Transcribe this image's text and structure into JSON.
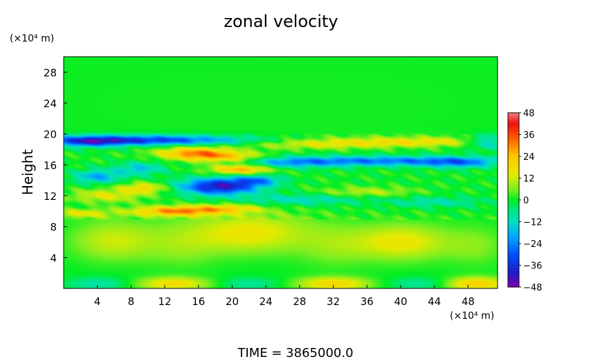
{
  "chart_data": {
    "type": "heatmap",
    "title": "zonal velocity",
    "ylabel": "Height",
    "y_unit": "(×10⁴ m)",
    "x_unit": "(×10⁴ m)",
    "xlim": [
      0,
      51.5
    ],
    "ylim": [
      0,
      30
    ],
    "x_ticks": [
      4,
      8,
      12,
      16,
      20,
      24,
      28,
      32,
      36,
      40,
      44,
      48
    ],
    "y_ticks": [
      4,
      8,
      12,
      16,
      20,
      24,
      28
    ],
    "colorbar": {
      "min": -48,
      "max": 48,
      "ticks": [
        48,
        36,
        24,
        12,
        0,
        -12,
        -24,
        -36,
        -48
      ],
      "stops": [
        {
          "v": -48,
          "color": "#7f00b0"
        },
        {
          "v": -40,
          "color": "#1c1cc8"
        },
        {
          "v": -30,
          "color": "#0050ff"
        },
        {
          "v": -20,
          "color": "#00aaff"
        },
        {
          "v": -12,
          "color": "#00e0c0"
        },
        {
          "v": -5,
          "color": "#00e878"
        },
        {
          "v": 0,
          "color": "#00ee22"
        },
        {
          "v": 6,
          "color": "#80ee20"
        },
        {
          "v": 14,
          "color": "#e6ea00"
        },
        {
          "v": 24,
          "color": "#ffc800"
        },
        {
          "v": 34,
          "color": "#ff5a00"
        },
        {
          "v": 42,
          "color": "#ee1010"
        },
        {
          "v": 48,
          "color": "#f07c7c"
        }
      ]
    },
    "features": [
      {
        "x": 10,
        "y": 19.2,
        "sx": 8,
        "sy": 0.45,
        "v": -34
      },
      {
        "x": 3,
        "y": 19.0,
        "sx": 3,
        "sy": 0.5,
        "v": -24
      },
      {
        "x": 50.5,
        "y": 19.0,
        "sx": 2,
        "sy": 0.6,
        "v": -22
      },
      {
        "x": 42,
        "y": 19.0,
        "sx": 9,
        "sy": 0.45,
        "v": 16
      },
      {
        "x": 30,
        "y": 18.6,
        "sx": 6,
        "sy": 0.4,
        "v": 10
      },
      {
        "x": 38,
        "y": 16.5,
        "sx": 8,
        "sy": 0.45,
        "v": -26
      },
      {
        "x": 27,
        "y": 16.3,
        "sx": 4,
        "sy": 0.5,
        "v": -16
      },
      {
        "x": 47,
        "y": 16.3,
        "sx": 3,
        "sy": 0.5,
        "v": -18
      },
      {
        "x": 15.5,
        "y": 17.5,
        "sx": 3,
        "sy": 0.55,
        "v": 28
      },
      {
        "x": 19.5,
        "y": 17.0,
        "sx": 3,
        "sy": 0.5,
        "v": 18
      },
      {
        "x": 21,
        "y": 15.4,
        "sx": 2.5,
        "sy": 0.45,
        "v": 26
      },
      {
        "x": 18.5,
        "y": 13.2,
        "sx": 3.2,
        "sy": 0.75,
        "v": -42
      },
      {
        "x": 23,
        "y": 14.0,
        "sx": 2,
        "sy": 0.5,
        "v": -20
      },
      {
        "x": 4,
        "y": 14.5,
        "sx": 2,
        "sy": 0.6,
        "v": -20
      },
      {
        "x": 9,
        "y": 15.5,
        "sx": 2,
        "sy": 0.6,
        "v": -16
      },
      {
        "x": 5,
        "y": 12.0,
        "sx": 3,
        "sy": 0.6,
        "v": 14
      },
      {
        "x": 9.5,
        "y": 13.0,
        "sx": 2,
        "sy": 0.5,
        "v": 18
      },
      {
        "x": 13,
        "y": 10.0,
        "sx": 3.5,
        "sy": 0.45,
        "v": 28
      },
      {
        "x": 19,
        "y": 10.3,
        "sx": 3,
        "sy": 0.4,
        "v": 18
      },
      {
        "x": 28,
        "y": 11.5,
        "sx": 5,
        "sy": 0.5,
        "v": -12
      },
      {
        "x": 44,
        "y": 11.2,
        "sx": 4,
        "sy": 0.5,
        "v": -10
      },
      {
        "x": 2,
        "y": 9.7,
        "sx": 2.5,
        "sy": 0.4,
        "v": 14
      },
      {
        "x": 36,
        "y": 12.5,
        "sx": 4,
        "sy": 0.45,
        "v": 10
      },
      {
        "x": 6,
        "y": 6.2,
        "sx": 3.5,
        "sy": 1.8,
        "v": 12
      },
      {
        "x": 22,
        "y": 7.2,
        "sx": 5,
        "sy": 1.8,
        "v": 16
      },
      {
        "x": 40,
        "y": 6.0,
        "sx": 4,
        "sy": 1.6,
        "v": 16
      },
      {
        "x": 14,
        "y": 5.5,
        "sx": 3,
        "sy": 2.0,
        "v": 6
      },
      {
        "x": 32,
        "y": 5.5,
        "sx": 3,
        "sy": 2.0,
        "v": 6
      },
      {
        "x": 49,
        "y": 5.5,
        "sx": 2.5,
        "sy": 1.8,
        "v": 6
      },
      {
        "x": 13,
        "y": 0.6,
        "sx": 3,
        "sy": 0.6,
        "v": 18
      },
      {
        "x": 32,
        "y": 0.6,
        "sx": 3,
        "sy": 0.6,
        "v": 20
      },
      {
        "x": 49,
        "y": 0.6,
        "sx": 2.5,
        "sy": 0.6,
        "v": 22
      },
      {
        "x": 4,
        "y": 0.6,
        "sx": 2.5,
        "sy": 0.6,
        "v": -10
      },
      {
        "x": 22,
        "y": 0.6,
        "sx": 2.5,
        "sy": 0.6,
        "v": -8
      },
      {
        "x": 42,
        "y": 0.6,
        "sx": 2.5,
        "sy": 0.6,
        "v": -8
      },
      {
        "x": 25,
        "y": 24,
        "sx": 30,
        "sy": 6,
        "v": 1
      }
    ]
  },
  "footer": {
    "time_label": "TIME = 3865000.0"
  }
}
